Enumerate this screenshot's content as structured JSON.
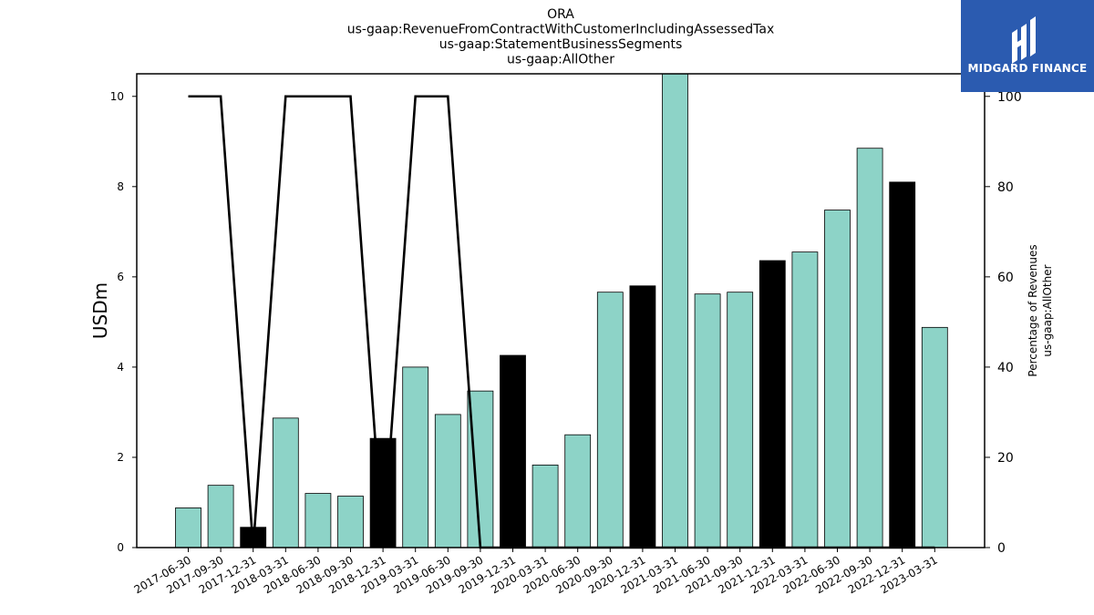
{
  "colors": {
    "bar_default": "#8dd3c7",
    "bar_highlight": "#000000",
    "line": "#000000",
    "logo_bg": "#2b5bb0"
  },
  "logo": {
    "text": "MIDGARD FINANCE",
    "icon": "midgard-logo-icon"
  },
  "chart_data": {
    "type": "bar",
    "title_lines": [
      "ORA",
      "us-gaap:RevenueFromContractWithCustomerIncludingAssessedTax",
      "us-gaap:StatementBusinessSegments",
      "us-gaap:AllOther"
    ],
    "ylabel": "USDm",
    "y2label_lines": [
      "Percentage of Revenues",
      "us-gaap:AllOther"
    ],
    "ylim": [
      0,
      10.5
    ],
    "y2lim": [
      0,
      105
    ],
    "yticks": [
      0,
      2,
      4,
      6,
      8,
      10
    ],
    "y2ticks": [
      0,
      20,
      40,
      60,
      80,
      100
    ],
    "categories": [
      "2017-06-30",
      "2017-09-30",
      "2017-12-31",
      "2018-03-31",
      "2018-06-30",
      "2018-09-30",
      "2018-12-31",
      "2019-03-31",
      "2019-06-30",
      "2019-09-30",
      "2019-12-31",
      "2020-03-31",
      "2020-06-30",
      "2020-09-30",
      "2020-12-31",
      "2021-03-31",
      "2021-06-30",
      "2021-09-30",
      "2021-12-31",
      "2022-03-31",
      "2022-06-30",
      "2022-09-30",
      "2022-12-31",
      "2023-03-31"
    ],
    "series": [
      {
        "type": "bar",
        "values": [
          0.88,
          1.38,
          0.45,
          2.87,
          1.2,
          1.14,
          2.42,
          4.0,
          2.95,
          3.47,
          4.26,
          1.83,
          2.5,
          5.66,
          5.8,
          10.6,
          5.62,
          5.66,
          6.36,
          6.55,
          7.48,
          8.85,
          8.1,
          4.88
        ],
        "highlight": [
          false,
          false,
          true,
          false,
          false,
          false,
          true,
          false,
          false,
          false,
          true,
          false,
          false,
          false,
          true,
          false,
          false,
          false,
          true,
          false,
          false,
          false,
          true,
          false
        ]
      },
      {
        "type": "line",
        "axis": "right",
        "values": [
          100,
          100,
          0,
          100,
          100,
          100,
          0,
          100,
          100,
          0,
          0,
          0,
          0,
          0,
          0,
          0,
          0,
          0,
          0,
          0,
          0,
          0,
          0,
          0
        ]
      }
    ]
  }
}
